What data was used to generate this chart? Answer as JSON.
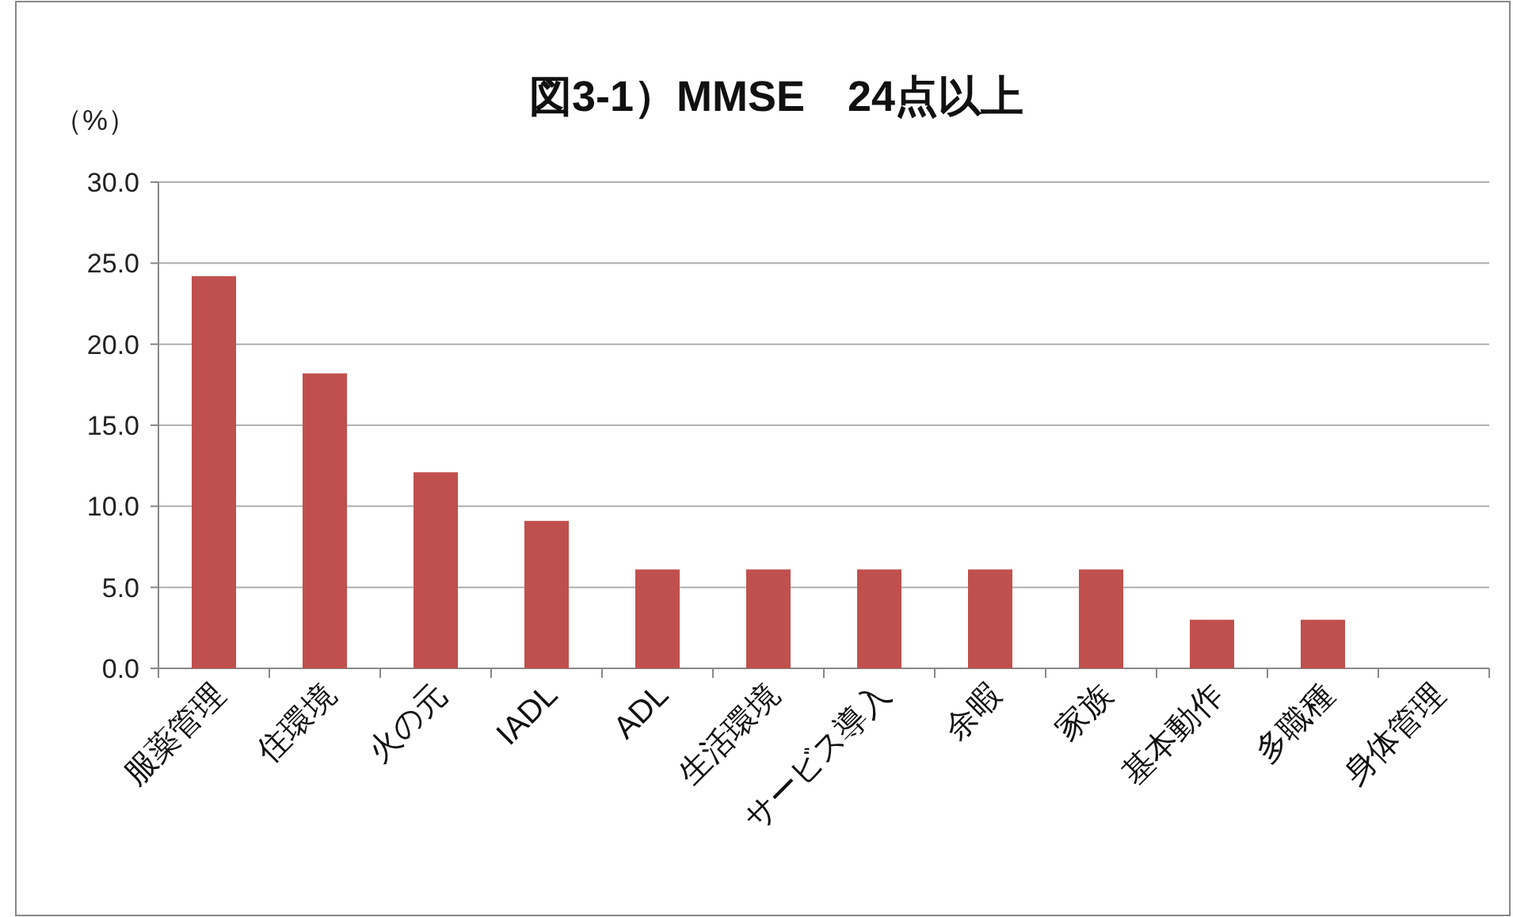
{
  "chart_data": {
    "type": "bar",
    "title": "図3-1）MMSE　24点以上",
    "ylabel": "（%）",
    "categories": [
      "服薬管理",
      "住環境",
      "火の元",
      "IADL",
      "ADL",
      "生活環境",
      "サービス導入",
      "余暇",
      "家族",
      "基本動作",
      "多職種",
      "身体管理"
    ],
    "values": [
      24.2,
      18.2,
      12.1,
      9.1,
      6.1,
      6.1,
      6.1,
      6.1,
      6.1,
      3.0,
      3.0,
      0
    ],
    "color": "#c0504d",
    "ylim": [
      0,
      30
    ],
    "yticks": [
      {
        "value": 0,
        "label": "0.0"
      },
      {
        "value": 5,
        "label": "5.0"
      },
      {
        "value": 10,
        "label": "10.0"
      },
      {
        "value": 15,
        "label": "15.0"
      },
      {
        "value": 20,
        "label": "20.0"
      },
      {
        "value": 25,
        "label": "25.0"
      },
      {
        "value": 30,
        "label": "30.0"
      }
    ],
    "grid": "y"
  }
}
